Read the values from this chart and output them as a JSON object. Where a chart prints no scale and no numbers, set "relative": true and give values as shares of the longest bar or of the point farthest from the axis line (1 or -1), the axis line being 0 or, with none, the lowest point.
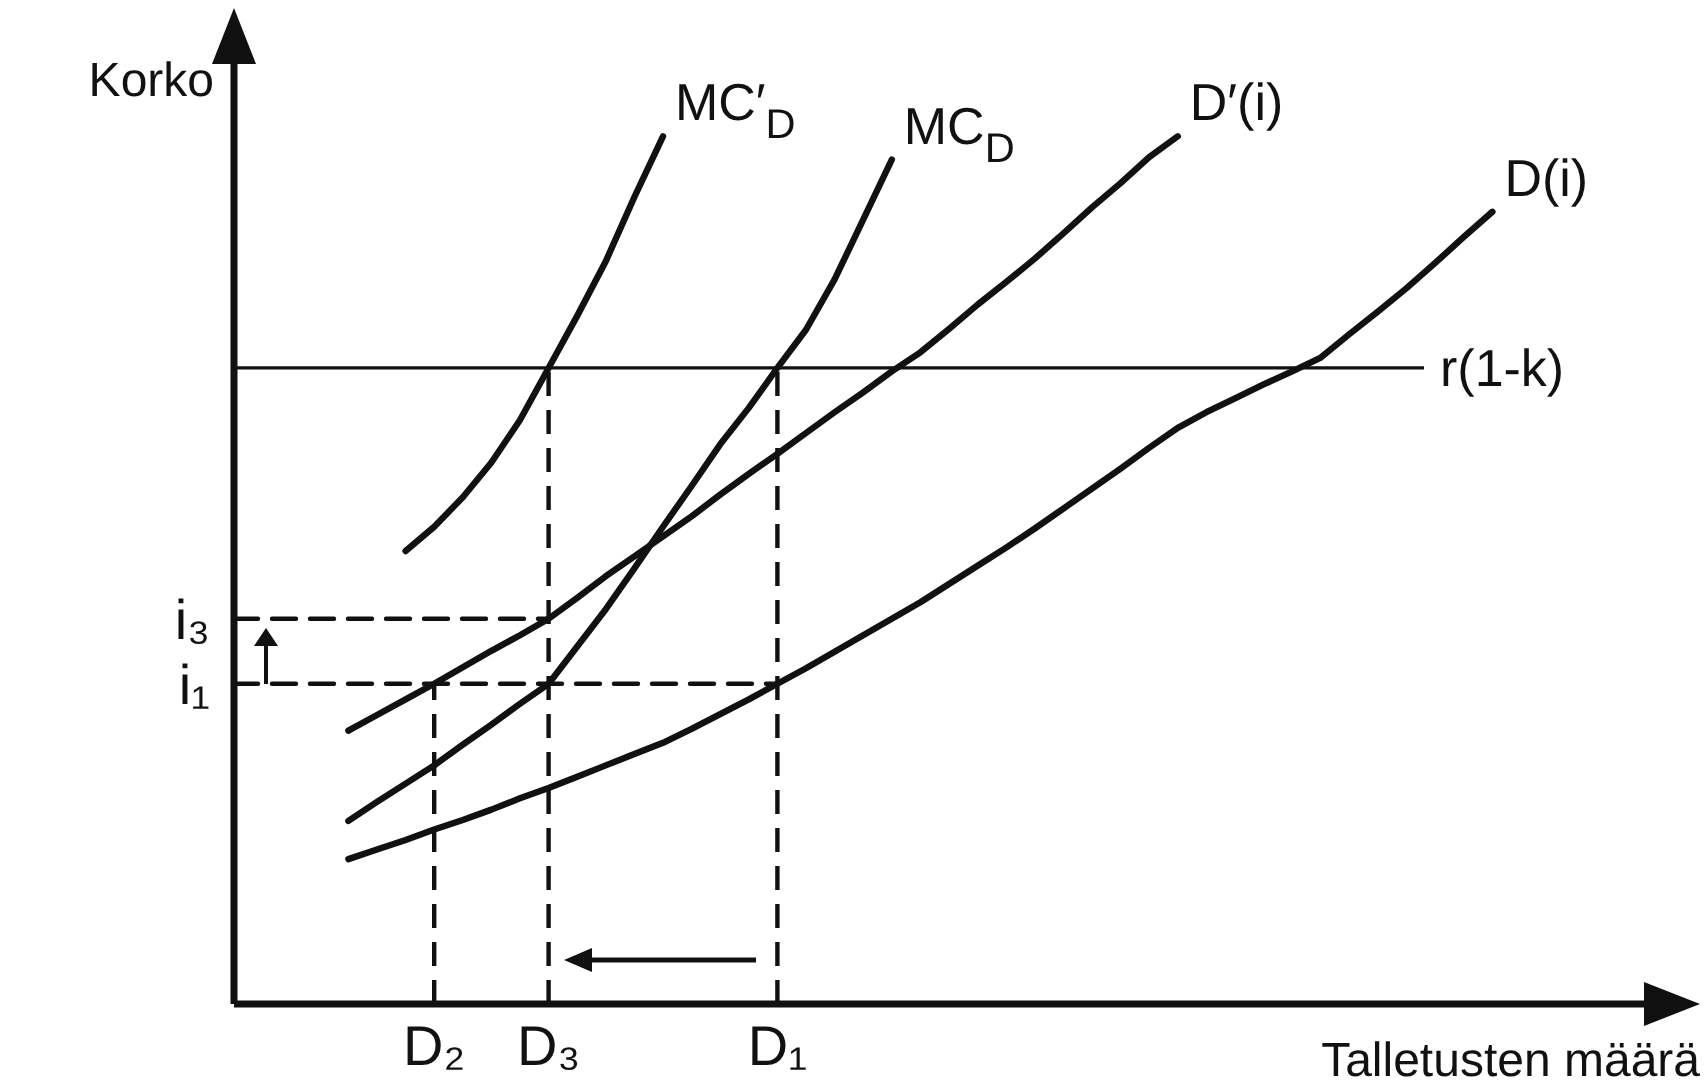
{
  "chart_data": {
    "type": "line",
    "relative": true,
    "xlabel": "Talletusten määrä",
    "ylabel": "Korko",
    "legend": false,
    "grid": false,
    "marker": "none",
    "categories": [
      null,
      null,
      null,
      null,
      null,
      null,
      null,
      "D₂",
      null,
      null,
      null,
      "D₃",
      null,
      null,
      null,
      null,
      null,
      null,
      null,
      "D₁",
      null,
      null,
      null,
      null,
      null,
      null,
      null,
      null,
      null,
      null,
      null,
      null,
      null,
      null,
      null,
      null,
      null,
      null,
      null,
      null,
      null,
      null,
      null,
      null,
      null,
      null,
      null,
      null,
      null,
      null,
      null
    ],
    "series": [
      {
        "name": "MC′$_{D}$",
        "color": "#111111",
        "line_style": "solid",
        "values": [
          null,
          null,
          null,
          null,
          null,
          null,
          0.522,
          0.55,
          0.584,
          0.624,
          0.673,
          0.733,
          0.793,
          0.856,
          0.93,
          1,
          null,
          null,
          null,
          null,
          null,
          null,
          null,
          null,
          null,
          null,
          null,
          null,
          null,
          null,
          null,
          null,
          null,
          null,
          null,
          null,
          null,
          null,
          null,
          null,
          null,
          null,
          null,
          null,
          null,
          null,
          null,
          null,
          null,
          null,
          null
        ]
      },
      {
        "name": "MC$_{D}$",
        "color": "#111111",
        "line_style": "solid",
        "values": [
          null,
          null,
          null,
          null,
          0.211,
          0.233,
          0.254,
          0.275,
          0.299,
          0.322,
          0.346,
          0.369,
          0.412,
          0.455,
          0.502,
          0.55,
          0.597,
          0.645,
          0.687,
          0.733,
          0.777,
          0.835,
          0.904,
          0.973,
          null,
          null,
          null,
          null,
          null,
          null,
          null,
          null,
          null,
          null,
          null,
          null,
          null,
          null,
          null,
          null,
          null,
          null,
          null,
          null,
          null,
          null,
          null,
          null,
          null,
          null,
          null
        ]
      },
      {
        "name": "D′(i)",
        "color": "#111111",
        "line_style": "solid",
        "values": [
          null,
          null,
          null,
          null,
          0.315,
          0.333,
          0.351,
          0.369,
          0.388,
          0.407,
          0.425,
          0.444,
          0.468,
          0.493,
          0.516,
          0.539,
          0.562,
          0.587,
          0.611,
          0.634,
          0.658,
          0.682,
          0.705,
          0.729,
          0.751,
          0.778,
          0.806,
          0.832,
          0.859,
          0.888,
          0.918,
          0.946,
          0.976,
          1,
          null,
          null,
          null,
          null,
          null,
          null,
          null,
          null,
          null,
          null,
          null,
          null,
          null,
          null,
          null,
          null,
          null
        ]
      },
      {
        "name": "D(i)",
        "color": "#111111",
        "line_style": "solid",
        "values": [
          null,
          null,
          null,
          null,
          0.167,
          0.178,
          0.189,
          0.201,
          0.212,
          0.224,
          0.237,
          0.249,
          0.262,
          0.275,
          0.288,
          0.301,
          0.317,
          0.334,
          0.351,
          0.369,
          0.387,
          0.406,
          0.425,
          0.444,
          0.463,
          0.484,
          0.505,
          0.526,
          0.548,
          0.571,
          0.594,
          0.617,
          0.641,
          0.664,
          0.682,
          0.698,
          0.714,
          0.729,
          0.745,
          0.772,
          0.798,
          0.825,
          0.854,
          0.884,
          0.913,
          null,
          null,
          null,
          null,
          null,
          null
        ]
      },
      {
        "color": "#111111",
        "line_style": "dashed",
        "values": [
          0.444,
          0.444,
          0.444,
          0.444,
          0.444,
          0.444,
          0.444,
          0.444,
          0.444,
          0.444,
          0.444,
          0.444,
          null,
          null,
          null,
          null,
          null,
          null,
          null,
          null,
          null,
          null,
          null,
          null,
          null,
          null,
          null,
          null,
          null,
          null,
          null,
          null,
          null,
          null,
          null,
          null,
          null,
          null,
          null,
          null,
          null,
          null,
          null,
          null,
          null,
          null,
          null,
          null,
          null,
          null,
          null
        ]
      },
      {
        "color": "#111111",
        "line_style": "dashed",
        "values": [
          0.369,
          0.369,
          0.369,
          0.369,
          0.369,
          0.369,
          0.369,
          0.369,
          0.369,
          0.369,
          0.369,
          0.369,
          0.369,
          0.369,
          0.369,
          0.369,
          0.369,
          0.369,
          0.369,
          0.369,
          null,
          null,
          null,
          null,
          null,
          null,
          null,
          null,
          null,
          null,
          null,
          null,
          null,
          null,
          null,
          null,
          null,
          null,
          null,
          null,
          null,
          null,
          null,
          null,
          null,
          null,
          null,
          null,
          null,
          null,
          null
        ]
      }
    ],
    "ref_lines": [
      {
        "axis": "y",
        "value": 0.733,
        "label": "r(1-k)",
        "color": "#111111"
      },
      {
        "axis": "x",
        "value": "D₂",
        "color": "#111111",
        "line_style": "dashed"
      },
      {
        "axis": "x",
        "value": "D₃",
        "color": "#111111",
        "line_style": "dashed"
      },
      {
        "axis": "x",
        "value": "D₁",
        "color": "#111111",
        "line_style": "dashed"
      }
    ],
    "annotations": [
      "i₃",
      "i₁"
    ]
  }
}
